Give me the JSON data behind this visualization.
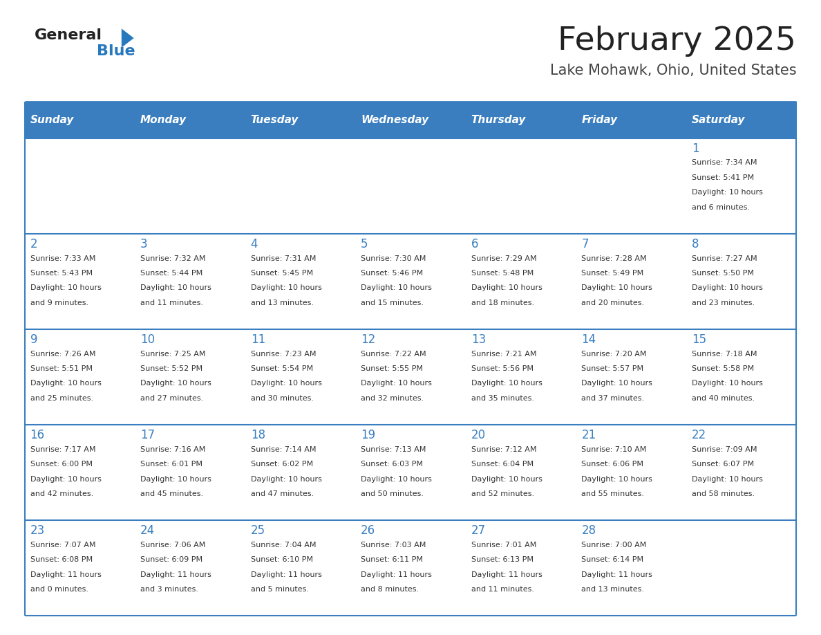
{
  "title": "February 2025",
  "subtitle": "Lake Mohawk, Ohio, United States",
  "days_of_week": [
    "Sunday",
    "Monday",
    "Tuesday",
    "Wednesday",
    "Thursday",
    "Friday",
    "Saturday"
  ],
  "header_bg": "#3a7ebf",
  "header_text": "#ffffff",
  "row_bg_white": "#ffffff",
  "cell_border": "#3a7ebf",
  "title_color": "#222222",
  "subtitle_color": "#444444",
  "day_number_color": "#3a7ebf",
  "cell_text_color": "#333333",
  "logo_general_color": "#222222",
  "logo_blue_color": "#2878be",
  "calendar_data": [
    [
      null,
      null,
      null,
      null,
      null,
      null,
      {
        "day": "1",
        "sunrise": "7:34 AM",
        "sunset": "5:41 PM",
        "daylight": "10 hours and 6 minutes."
      }
    ],
    [
      {
        "day": "2",
        "sunrise": "7:33 AM",
        "sunset": "5:43 PM",
        "daylight": "10 hours and 9 minutes."
      },
      {
        "day": "3",
        "sunrise": "7:32 AM",
        "sunset": "5:44 PM",
        "daylight": "10 hours and 11 minutes."
      },
      {
        "day": "4",
        "sunrise": "7:31 AM",
        "sunset": "5:45 PM",
        "daylight": "10 hours and 13 minutes."
      },
      {
        "day": "5",
        "sunrise": "7:30 AM",
        "sunset": "5:46 PM",
        "daylight": "10 hours and 15 minutes."
      },
      {
        "day": "6",
        "sunrise": "7:29 AM",
        "sunset": "5:48 PM",
        "daylight": "10 hours and 18 minutes."
      },
      {
        "day": "7",
        "sunrise": "7:28 AM",
        "sunset": "5:49 PM",
        "daylight": "10 hours and 20 minutes."
      },
      {
        "day": "8",
        "sunrise": "7:27 AM",
        "sunset": "5:50 PM",
        "daylight": "10 hours and 23 minutes."
      }
    ],
    [
      {
        "day": "9",
        "sunrise": "7:26 AM",
        "sunset": "5:51 PM",
        "daylight": "10 hours and 25 minutes."
      },
      {
        "day": "10",
        "sunrise": "7:25 AM",
        "sunset": "5:52 PM",
        "daylight": "10 hours and 27 minutes."
      },
      {
        "day": "11",
        "sunrise": "7:23 AM",
        "sunset": "5:54 PM",
        "daylight": "10 hours and 30 minutes."
      },
      {
        "day": "12",
        "sunrise": "7:22 AM",
        "sunset": "5:55 PM",
        "daylight": "10 hours and 32 minutes."
      },
      {
        "day": "13",
        "sunrise": "7:21 AM",
        "sunset": "5:56 PM",
        "daylight": "10 hours and 35 minutes."
      },
      {
        "day": "14",
        "sunrise": "7:20 AM",
        "sunset": "5:57 PM",
        "daylight": "10 hours and 37 minutes."
      },
      {
        "day": "15",
        "sunrise": "7:18 AM",
        "sunset": "5:58 PM",
        "daylight": "10 hours and 40 minutes."
      }
    ],
    [
      {
        "day": "16",
        "sunrise": "7:17 AM",
        "sunset": "6:00 PM",
        "daylight": "10 hours and 42 minutes."
      },
      {
        "day": "17",
        "sunrise": "7:16 AM",
        "sunset": "6:01 PM",
        "daylight": "10 hours and 45 minutes."
      },
      {
        "day": "18",
        "sunrise": "7:14 AM",
        "sunset": "6:02 PM",
        "daylight": "10 hours and 47 minutes."
      },
      {
        "day": "19",
        "sunrise": "7:13 AM",
        "sunset": "6:03 PM",
        "daylight": "10 hours and 50 minutes."
      },
      {
        "day": "20",
        "sunrise": "7:12 AM",
        "sunset": "6:04 PM",
        "daylight": "10 hours and 52 minutes."
      },
      {
        "day": "21",
        "sunrise": "7:10 AM",
        "sunset": "6:06 PM",
        "daylight": "10 hours and 55 minutes."
      },
      {
        "day": "22",
        "sunrise": "7:09 AM",
        "sunset": "6:07 PM",
        "daylight": "10 hours and 58 minutes."
      }
    ],
    [
      {
        "day": "23",
        "sunrise": "7:07 AM",
        "sunset": "6:08 PM",
        "daylight": "11 hours and 0 minutes."
      },
      {
        "day": "24",
        "sunrise": "7:06 AM",
        "sunset": "6:09 PM",
        "daylight": "11 hours and 3 minutes."
      },
      {
        "day": "25",
        "sunrise": "7:04 AM",
        "sunset": "6:10 PM",
        "daylight": "11 hours and 5 minutes."
      },
      {
        "day": "26",
        "sunrise": "7:03 AM",
        "sunset": "6:11 PM",
        "daylight": "11 hours and 8 minutes."
      },
      {
        "day": "27",
        "sunrise": "7:01 AM",
        "sunset": "6:13 PM",
        "daylight": "11 hours and 11 minutes."
      },
      {
        "day": "28",
        "sunrise": "7:00 AM",
        "sunset": "6:14 PM",
        "daylight": "11 hours and 13 minutes."
      },
      null
    ]
  ]
}
